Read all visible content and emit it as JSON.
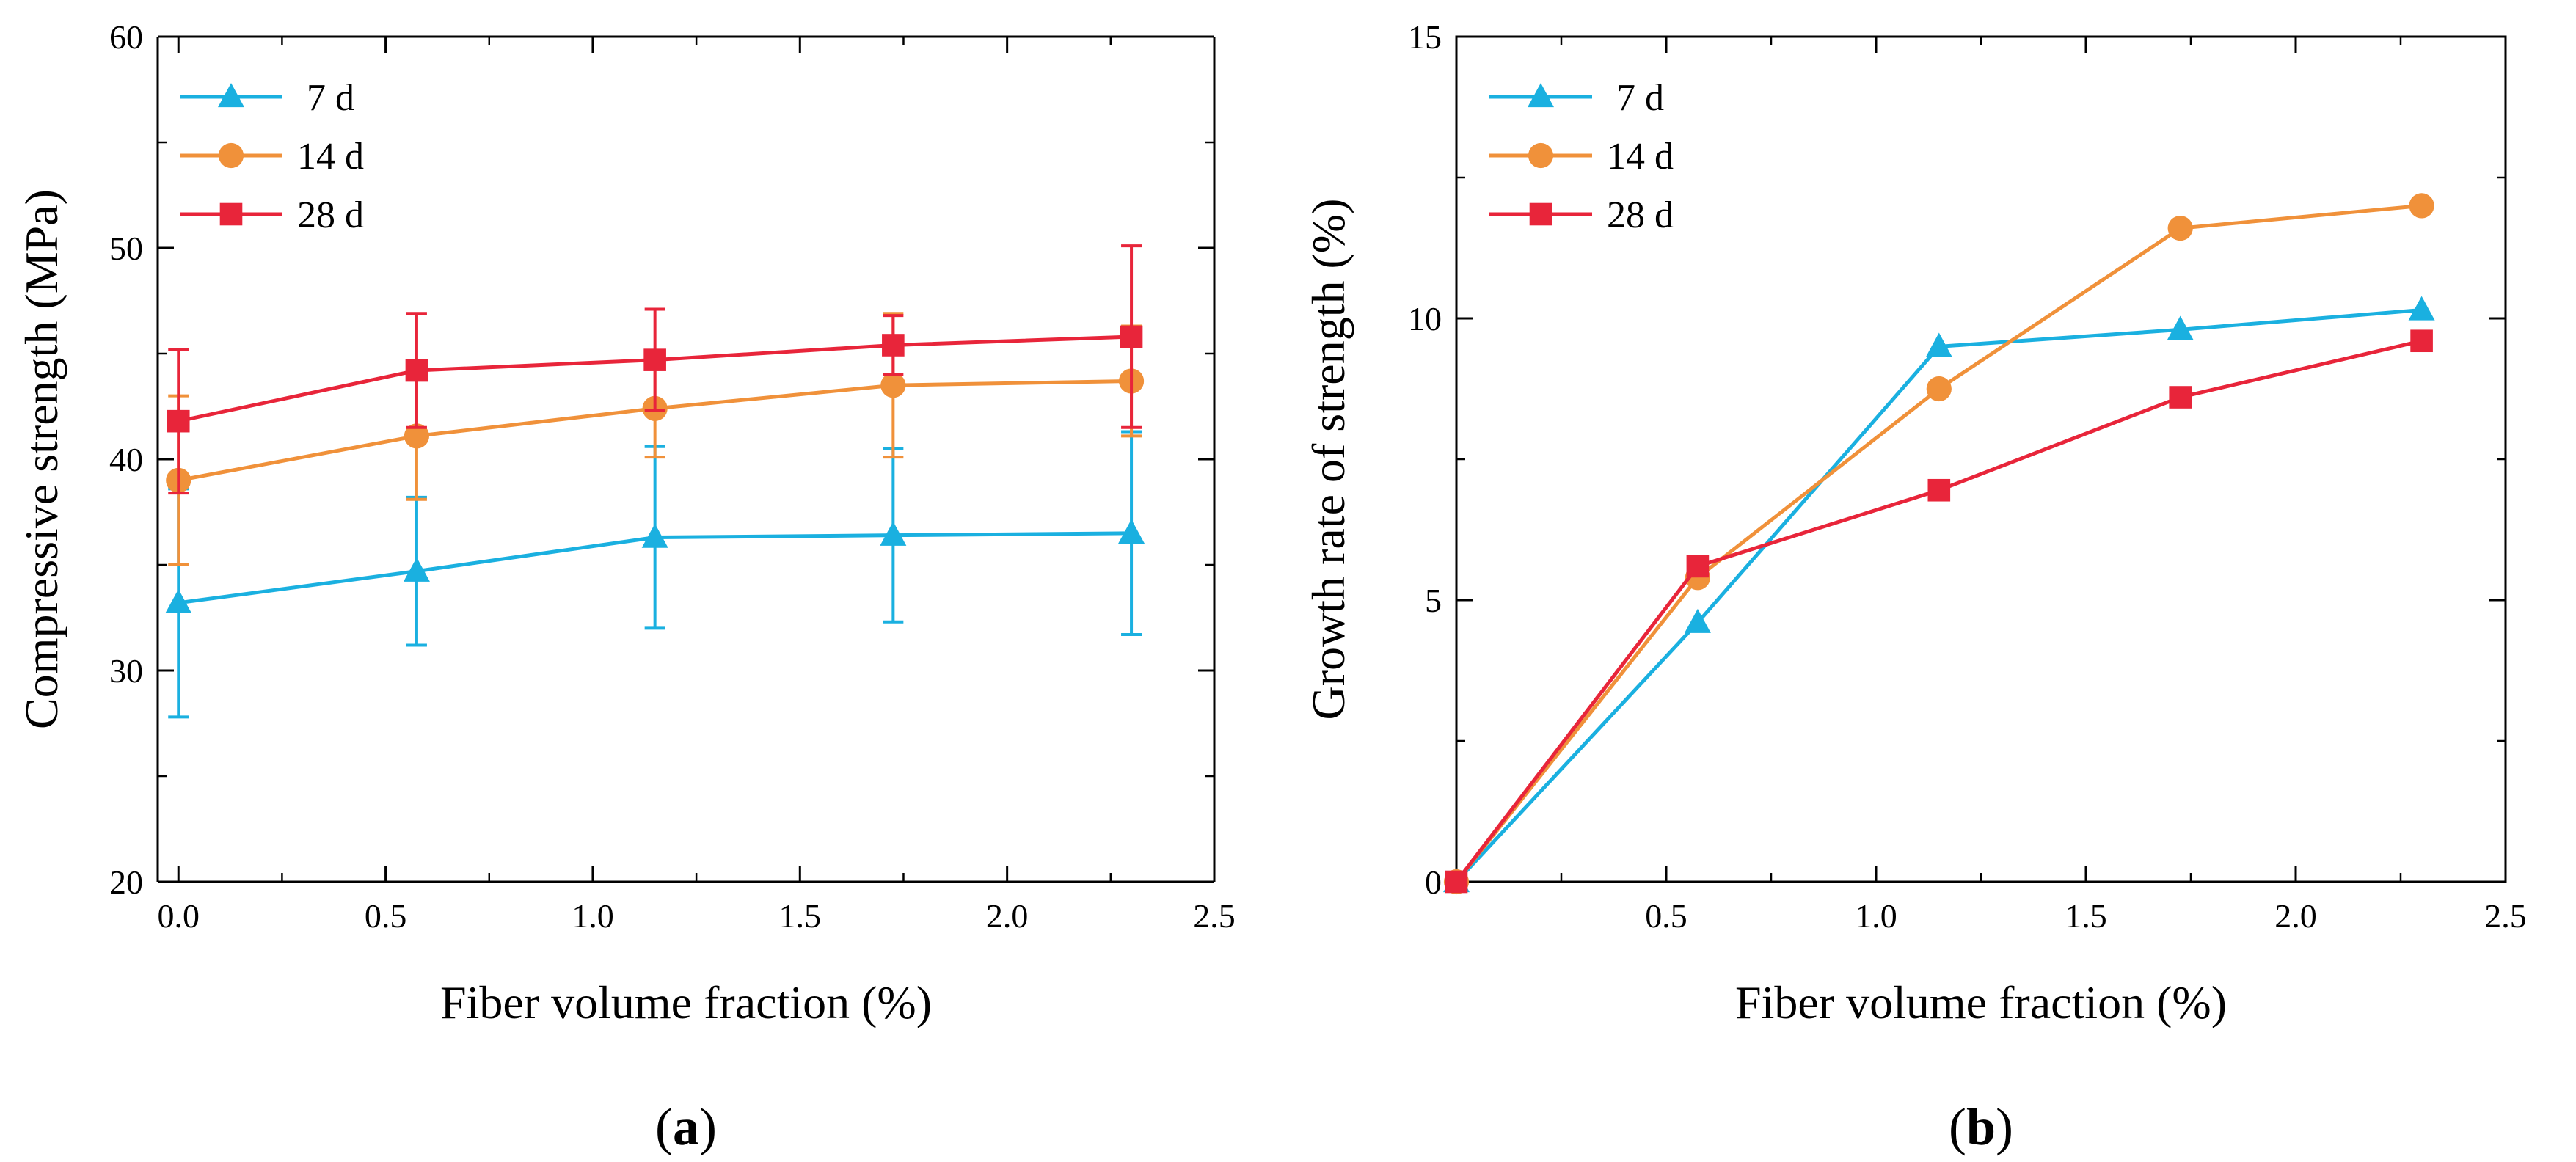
{
  "chart_data": [
    {
      "id": "a",
      "type": "line",
      "caption_letter": "a",
      "xlabel": "Fiber volume fraction (%)",
      "ylabel": "Compressive strength (MPa)",
      "xlim": [
        -0.05,
        2.5
      ],
      "ylim": [
        20,
        60
      ],
      "x_ticks": [
        0.0,
        0.5,
        1.0,
        1.5,
        2.0,
        2.5
      ],
      "x_tick_labels": [
        "0.0",
        "0.5",
        "1.0",
        "1.5",
        "2.0",
        "2.5"
      ],
      "y_ticks": [
        20,
        30,
        40,
        50,
        60
      ],
      "y_tick_labels": [
        "20",
        "30",
        "40",
        "50",
        "60"
      ],
      "grid": false,
      "legend_position": "top-left",
      "x": [
        0.0,
        0.575,
        1.15,
        1.725,
        2.3
      ],
      "series": [
        {
          "name": "7 d",
          "color": "#1ab0e0",
          "marker": "triangle",
          "values": [
            33.2,
            34.7,
            36.3,
            36.4,
            36.5
          ],
          "errors": [
            5.4,
            3.5,
            4.3,
            4.1,
            4.8
          ]
        },
        {
          "name": "14 d",
          "color": "#f0913a",
          "marker": "circle",
          "values": [
            39.0,
            41.1,
            42.4,
            43.5,
            43.7
          ],
          "errors": [
            4.0,
            3.0,
            2.3,
            3.4,
            2.6
          ]
        },
        {
          "name": "28 d",
          "color": "#e8253a",
          "marker": "square",
          "values": [
            41.8,
            44.2,
            44.7,
            45.4,
            45.8
          ],
          "errors": [
            3.4,
            2.7,
            2.4,
            1.4,
            4.3
          ]
        }
      ]
    },
    {
      "id": "b",
      "type": "line",
      "caption_letter": "b",
      "xlabel": "Fiber volume fraction (%)",
      "ylabel": "Growth rate of strength (%)",
      "xlim": [
        0,
        2.5
      ],
      "ylim": [
        0,
        15
      ],
      "x_ticks": [
        0.5,
        1.0,
        1.5,
        2.0,
        2.5
      ],
      "x_tick_labels": [
        "0.5",
        "1.0",
        "1.5",
        "2.0",
        "2.5"
      ],
      "y_ticks": [
        0,
        5,
        10,
        15
      ],
      "y_tick_labels": [
        "0",
        "5",
        "10",
        "15"
      ],
      "grid": false,
      "legend_position": "top-left",
      "x": [
        0.0,
        0.575,
        1.15,
        1.725,
        2.3
      ],
      "series": [
        {
          "name": "7 d",
          "color": "#1ab0e0",
          "marker": "triangle",
          "values": [
            0.0,
            4.6,
            9.5,
            9.8,
            10.15
          ]
        },
        {
          "name": "14 d",
          "color": "#f0913a",
          "marker": "circle",
          "values": [
            0.0,
            5.4,
            8.75,
            11.6,
            12.0
          ]
        },
        {
          "name": "28 d",
          "color": "#e8253a",
          "marker": "square",
          "values": [
            0.0,
            5.6,
            6.95,
            8.6,
            9.6
          ]
        }
      ]
    }
  ]
}
